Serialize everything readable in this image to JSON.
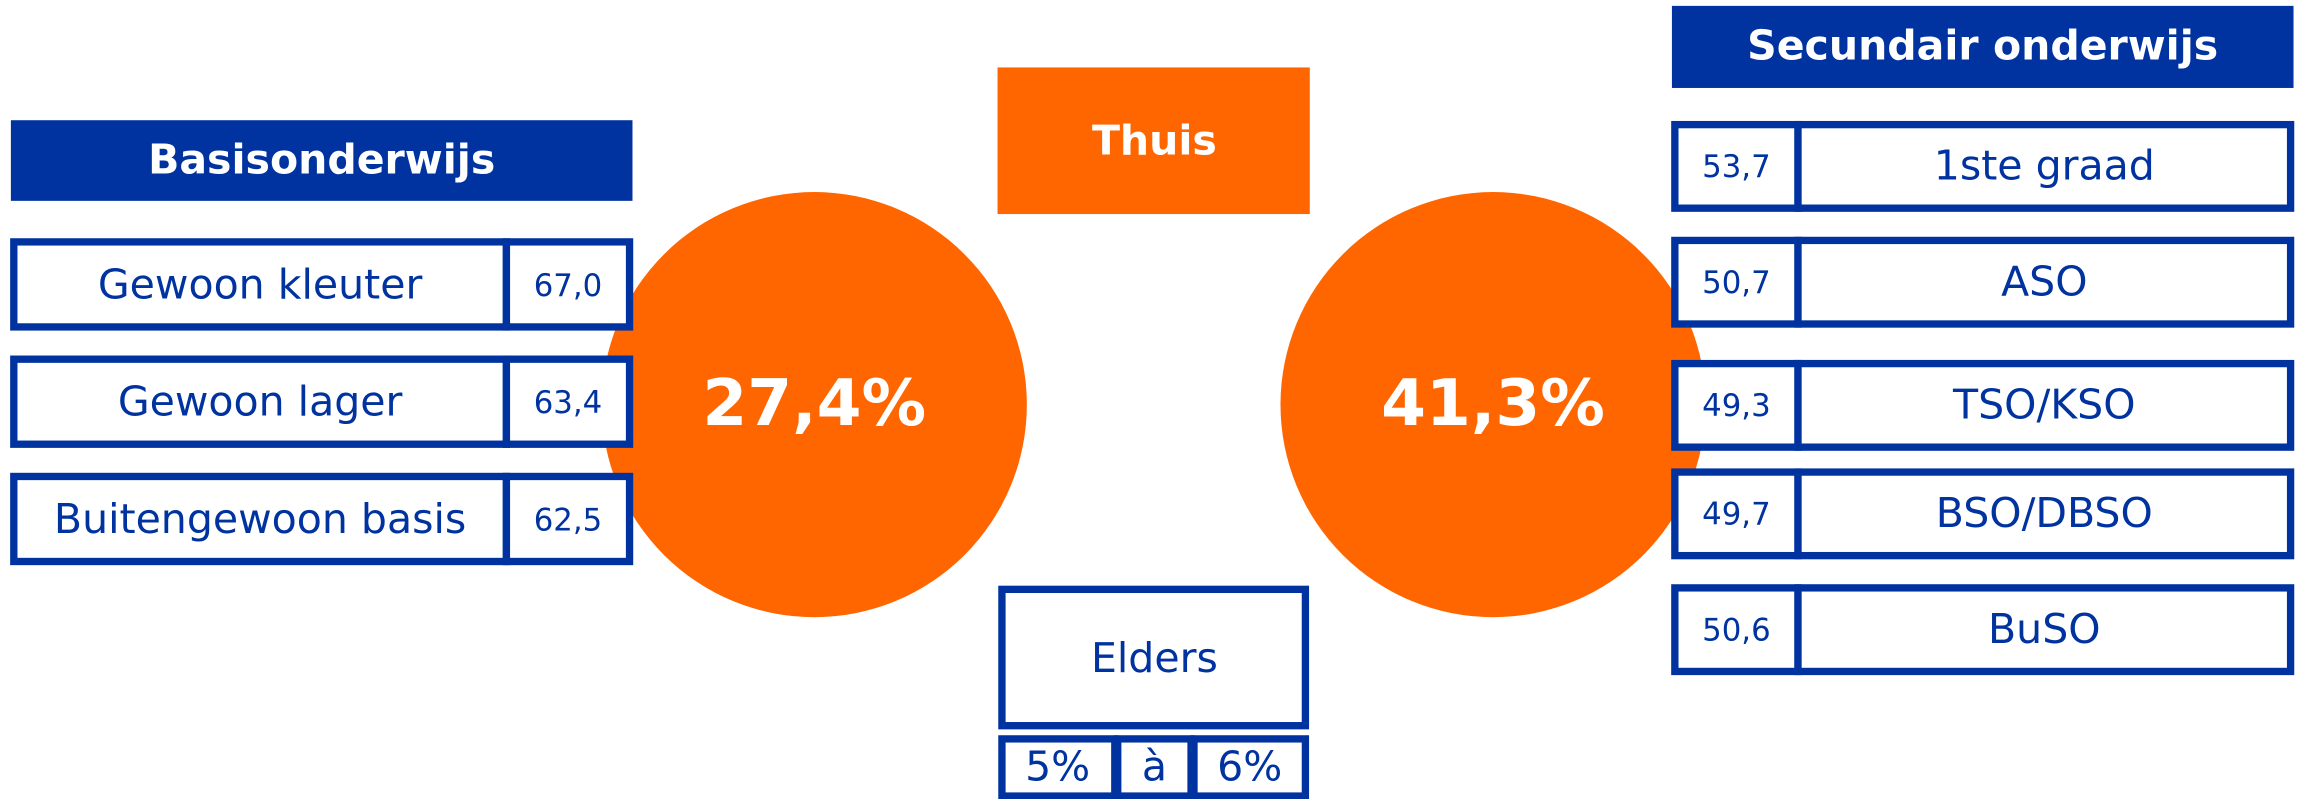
{
  "left": {
    "title": "Basisonderwijs",
    "percentage": "27,4%",
    "rows": [
      {
        "label": "Gewoon kleuter",
        "value": "67,0"
      },
      {
        "label": "Gewoon lager",
        "value": "63,4"
      },
      {
        "label": "Buitengewoon basis",
        "value": "62,5"
      }
    ]
  },
  "center": {
    "home": "Thuis",
    "elsewhere": "Elders",
    "range": [
      "5%",
      "à",
      "6%"
    ]
  },
  "right": {
    "title": "Secundair onderwijs",
    "percentage": "41,3%",
    "rows": [
      {
        "label": "1ste graad",
        "value": "53,7"
      },
      {
        "label": "ASO",
        "value": "50,7"
      },
      {
        "label": "TSO/KSO",
        "value": "49,3"
      },
      {
        "label": "BSO/DBSO",
        "value": "49,7"
      },
      {
        "label": "BuSO",
        "value": "50,6"
      }
    ]
  }
}
